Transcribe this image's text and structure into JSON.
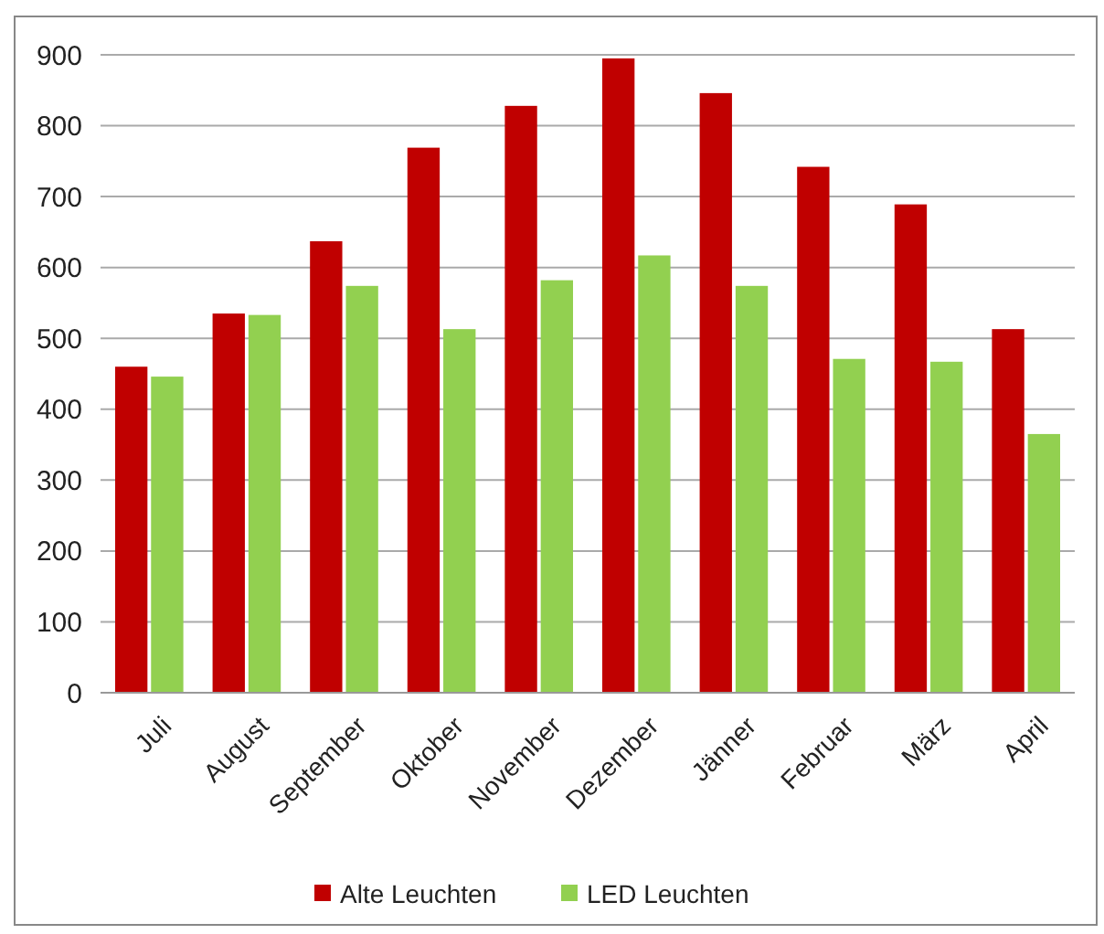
{
  "chart_data": {
    "type": "bar",
    "categories": [
      "Juli",
      "August",
      "September",
      "Oktober",
      "November",
      "Dezember",
      "Jänner",
      "Februar",
      "März",
      "April"
    ],
    "series": [
      {
        "name": "Alte Leuchten",
        "color": "#c00000",
        "values": [
          460,
          535,
          637,
          769,
          828,
          895,
          846,
          742,
          689,
          513
        ]
      },
      {
        "name": "LED Leuchten",
        "color": "#92d050",
        "values": [
          446,
          533,
          574,
          513,
          582,
          617,
          574,
          471,
          467,
          365
        ]
      }
    ],
    "ylim": [
      0,
      900
    ],
    "yticks": [
      0,
      100,
      200,
      300,
      400,
      500,
      600,
      700,
      800,
      900
    ],
    "grid": "y",
    "legend": "bottom"
  }
}
